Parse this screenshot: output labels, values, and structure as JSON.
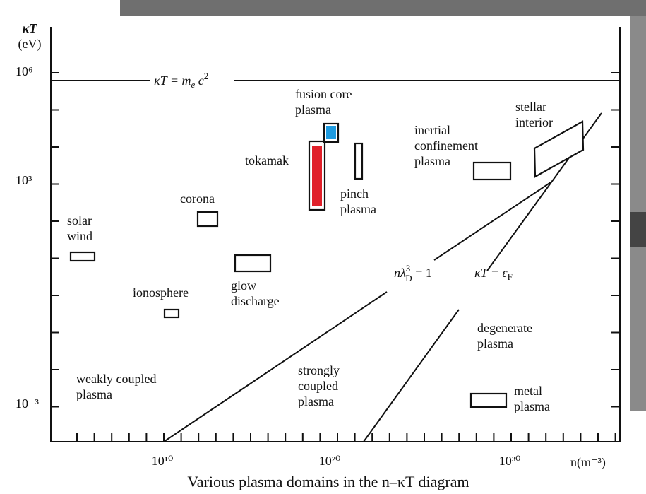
{
  "y_axis": {
    "label": [
      "κT",
      "(eV)"
    ],
    "ticks": [
      "10⁶",
      "10³",
      "10⁻³"
    ]
  },
  "x_axis": {
    "label": "n(m⁻³)",
    "ticks": [
      "10¹⁰",
      "10²⁰",
      "10³⁰"
    ]
  },
  "lines": {
    "rest_mass": {
      "a": "κT = m",
      "sub": "e",
      "b": " c",
      "sup": "2"
    },
    "debye": {
      "a": "nλ",
      "sup": "3",
      "sub": "D",
      "b": " = 1"
    },
    "fermi": {
      "a": "κT = ε",
      "sub": "F"
    }
  },
  "regions": [
    {
      "label": [
        "solar",
        "wind"
      ]
    },
    {
      "label": [
        "corona"
      ]
    },
    {
      "label": [
        "ionosphere"
      ]
    },
    {
      "label": [
        "glow",
        "discharge"
      ]
    },
    {
      "label": [
        "tokamak"
      ]
    },
    {
      "label": [
        "fusion core",
        "plasma"
      ]
    },
    {
      "label": [
        "pinch",
        "plasma"
      ]
    },
    {
      "label": [
        "inertial",
        "confinement",
        "plasma"
      ]
    },
    {
      "label": [
        "stellar",
        "interior"
      ]
    },
    {
      "label": [
        "degenerate",
        "plasma"
      ]
    },
    {
      "label": [
        "weakly coupled",
        "plasma"
      ]
    },
    {
      "label": [
        "strongly",
        "coupled",
        "plasma"
      ]
    },
    {
      "label": [
        "metal",
        "plasma"
      ]
    }
  ],
  "caption": "Various plasma domains in the n–κT diagram"
}
